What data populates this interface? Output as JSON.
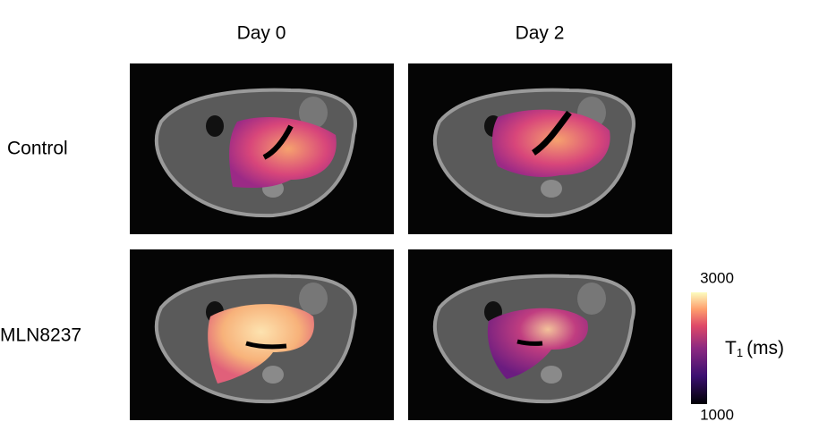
{
  "figure": {
    "column_labels": [
      "Day 0",
      "Day 2"
    ],
    "row_labels": [
      "Control",
      "MLN8237"
    ],
    "colorbar": {
      "range": [
        1000,
        3000
      ],
      "ticks": [
        1000,
        3000
      ],
      "label": "T",
      "label_subscript": "1",
      "unit": "(ms)"
    }
  }
}
